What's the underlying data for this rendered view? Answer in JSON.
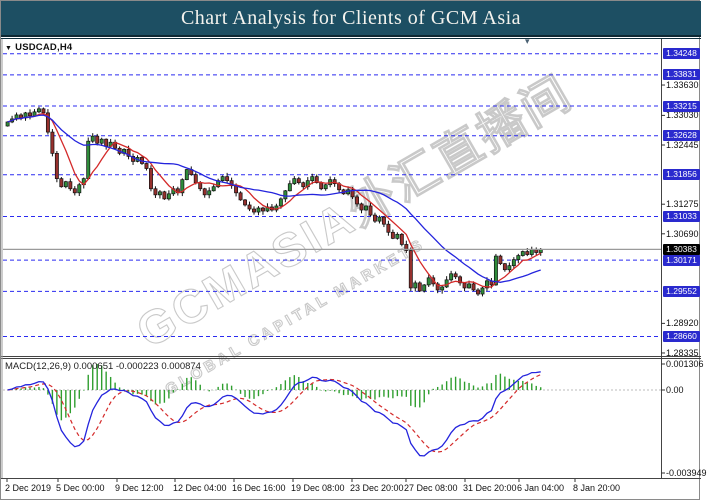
{
  "title_bar": {
    "text": "Chart Analysis for Clients of GCM Asia",
    "bg": "#1d4f63",
    "fg": "#f4f3ee"
  },
  "icons": {
    "dropdown_arrow": "▼",
    "marker_arrow": "▾"
  },
  "main_chart": {
    "symbol_label": "USDCAD,H4",
    "watermark_line1": "GCMASIA外汇直播间",
    "watermark_line2": "GLOBAL CAPITAL MARKETS"
  },
  "macd_panel": {
    "label": "MACD(12,26,9) 0.000651 -0.000223 0.000874"
  },
  "chart_data": {
    "type": "candlestick",
    "symbol": "USDCAD",
    "timeframe": "H4",
    "title": "Chart Analysis for Clients of GCM Asia",
    "ylim": [
      1.28295,
      1.345
    ],
    "price_axis_ticks": [
      "1.33630",
      "1.33030",
      "1.32445",
      "1.31275",
      "1.30690",
      "1.28920",
      "1.28335"
    ],
    "level_lines": [
      1.34248,
      1.33831,
      1.33215,
      1.32628,
      1.31856,
      1.31033,
      1.30171,
      1.29552,
      1.2866
    ],
    "current_price": 1.30383,
    "x_labels": [
      {
        "text": "2 Dec 2019",
        "x": 4
      },
      {
        "text": "5 Dec 00:00",
        "x": 55
      },
      {
        "text": "9 Dec 12:00",
        "x": 114
      },
      {
        "text": "12 Dec 04:00",
        "x": 172
      },
      {
        "text": "16 Dec 16:00",
        "x": 231
      },
      {
        "text": "19 Dec 08:00",
        "x": 290
      },
      {
        "text": "23 Dec 20:00",
        "x": 349
      },
      {
        "text": "27 Dec 08:00",
        "x": 403
      },
      {
        "text": "31 Dec 20:00",
        "x": 462
      },
      {
        "text": "6 Jan 04:00",
        "x": 516
      },
      {
        "text": "8 Jan 20:00",
        "x": 572
      }
    ],
    "closes": [
      1.329,
      1.3296,
      1.3304,
      1.3298,
      1.3308,
      1.3302,
      1.331,
      1.3316,
      1.3308,
      1.327,
      1.3228,
      1.3178,
      1.3162,
      1.3172,
      1.3158,
      1.315,
      1.3166,
      1.3178,
      1.3252,
      1.3262,
      1.3248,
      1.3256,
      1.3242,
      1.325,
      1.3238,
      1.3228,
      1.3236,
      1.3222,
      1.3212,
      1.322,
      1.3208,
      1.3198,
      1.3158,
      1.3146,
      1.3152,
      1.3138,
      1.3148,
      1.3158,
      1.315,
      1.3176,
      1.3196,
      1.3186,
      1.317,
      1.3158,
      1.3146,
      1.3154,
      1.3162,
      1.3174,
      1.3182,
      1.3174,
      1.3164,
      1.315,
      1.3136,
      1.3126,
      1.3118,
      1.3112,
      1.312,
      1.3114,
      1.3122,
      1.3116,
      1.3124,
      1.3138,
      1.3154,
      1.3168,
      1.3178,
      1.317,
      1.3162,
      1.3174,
      1.3182,
      1.317,
      1.3158,
      1.3166,
      1.3176,
      1.3168,
      1.3156,
      1.3148,
      1.3156,
      1.3142,
      1.3128,
      1.3116,
      1.3124,
      1.3106,
      1.3094,
      1.3102,
      1.3088,
      1.3072,
      1.306,
      1.3068,
      1.3048,
      1.3036,
      1.2962,
      1.2972,
      1.2956,
      1.2968,
      1.2982,
      1.297,
      1.2958,
      1.2964,
      1.2978,
      1.299,
      1.2984,
      1.2972,
      1.2962,
      1.297,
      1.2958,
      1.295,
      1.2962,
      1.2976,
      1.2968,
      1.3025,
      1.301,
      1.2998,
      1.3006,
      1.3018,
      1.3026,
      1.3034,
      1.3028,
      1.3038,
      1.3032,
      1.30383
    ],
    "ma_lines": [
      {
        "name": "fast-ma",
        "color": "#d42a2a"
      },
      {
        "name": "slow-ma",
        "color": "#2424dd"
      }
    ],
    "macd": {
      "params": "12,26,9",
      "last_values": {
        "main": 0.000651,
        "signal": -0.000223,
        "histogram": 0.000874
      },
      "axis_labels": [
        {
          "text": "0.001306",
          "y": 363
        },
        {
          "text": "0.00",
          "y": 389
        },
        {
          "text": "-0.003949",
          "y": 472
        }
      ]
    }
  },
  "colors": {
    "up_candle": "#2e8b3a",
    "down_candle": "#96302d",
    "candle_outline": "#111111",
    "level_line": "#2b2bf0",
    "badge_bg": "#2a2ace",
    "badge_fg": "#ffffff",
    "current_badge_bg": "#000000",
    "current_line": "#9a9a9a",
    "macd_hist": "#2f9e2f",
    "macd_main": "#2424dd",
    "macd_signal": "#d42a2a",
    "watermark": "#c9c9c9",
    "border": "#444444"
  }
}
